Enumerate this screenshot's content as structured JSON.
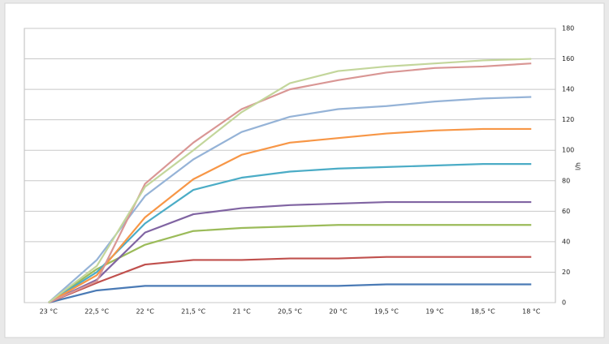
{
  "chart_data": {
    "type": "line",
    "categories": [
      "23 °C",
      "22,5 °C",
      "22 °C",
      "21,5 °C",
      "21 °C",
      "20,5 °C",
      "20 °C",
      "19,5 °C",
      "19 °C",
      "18,5 °C",
      "18 °C"
    ],
    "y_label": "l/h",
    "ylim": [
      0,
      180
    ],
    "yticks": [
      0,
      20,
      40,
      60,
      80,
      100,
      120,
      140,
      160,
      180
    ],
    "grid": true,
    "series": [
      {
        "color": "#4a7ab5",
        "values": [
          0,
          8,
          11,
          11,
          11,
          11,
          11,
          12,
          12,
          12,
          12
        ]
      },
      {
        "color": "#c0504d",
        "values": [
          0,
          13,
          25,
          28,
          28,
          29,
          29,
          30,
          30,
          30,
          30
        ]
      },
      {
        "color": "#9bbb59",
        "values": [
          0,
          22,
          38,
          47,
          49,
          50,
          51,
          51,
          51,
          51,
          51
        ]
      },
      {
        "color": "#8064a2",
        "values": [
          0,
          15,
          46,
          58,
          62,
          64,
          65,
          66,
          66,
          66,
          66
        ]
      },
      {
        "color": "#4bacc6",
        "values": [
          0,
          20,
          52,
          74,
          82,
          86,
          88,
          89,
          90,
          91,
          91
        ]
      },
      {
        "color": "#f79646",
        "values": [
          0,
          18,
          56,
          81,
          97,
          105,
          108,
          111,
          113,
          114,
          114
        ]
      },
      {
        "color": "#95b3d7",
        "values": [
          0,
          28,
          70,
          94,
          112,
          122,
          127,
          129,
          132,
          134,
          135
        ]
      },
      {
        "color": "#d99694",
        "values": [
          0,
          14,
          78,
          105,
          127,
          140,
          146,
          151,
          154,
          155,
          157
        ]
      },
      {
        "color": "#c3d69b",
        "values": [
          0,
          24,
          76,
          100,
          125,
          144,
          152,
          155,
          157,
          159,
          160
        ]
      }
    ]
  }
}
